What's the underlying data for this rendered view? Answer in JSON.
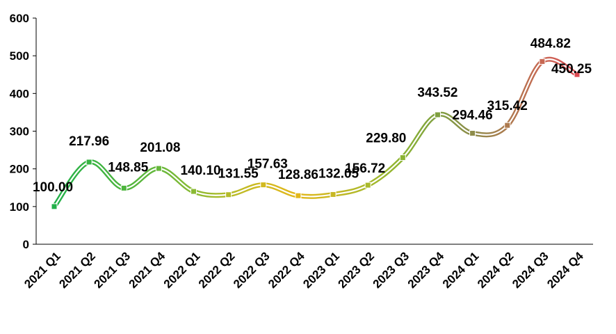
{
  "chart_data": {
    "type": "line",
    "title": "",
    "xlabel": "",
    "ylabel": "",
    "ylim": [
      0,
      600
    ],
    "yticks": [
      0,
      100,
      200,
      300,
      400,
      500,
      600
    ],
    "grid": false,
    "legend": "none",
    "categories": [
      "2021 Q1",
      "2021 Q2",
      "2021 Q3",
      "2021 Q4",
      "2022 Q1",
      "2022 Q2",
      "2022 Q3",
      "2022 Q4",
      "2023 Q1",
      "2023 Q2",
      "2023 Q3",
      "2023 Q4",
      "2024 Q1",
      "2024 Q2",
      "2024 Q3",
      "2024 Q4"
    ],
    "series": [
      {
        "values": [
          100.0,
          217.96,
          148.85,
          201.08,
          140.1,
          131.55,
          157.63,
          128.86,
          132.05,
          156.72,
          229.8,
          343.52,
          294.46,
          315.42,
          484.82,
          450.25
        ],
        "labels": [
          "100.00",
          "217.96",
          "148.85",
          "201.08",
          "140.10",
          "131.55",
          "157.63",
          "128.86",
          "132.05",
          "156.72",
          "229.80",
          "343.52",
          "294.46",
          "315.42",
          "484.82",
          "450.25"
        ]
      }
    ],
    "colors": [
      "#22b04a",
      "#38b443",
      "#4db53d",
      "#66b83b",
      "#8aba33",
      "#b4bb28",
      "#d2b91f",
      "#e2b71a",
      "#c8b824",
      "#a9b92b",
      "#8bb433",
      "#7f9f40",
      "#8e8c4a",
      "#ad7a4e",
      "#c86853",
      "#dc4a52"
    ]
  }
}
